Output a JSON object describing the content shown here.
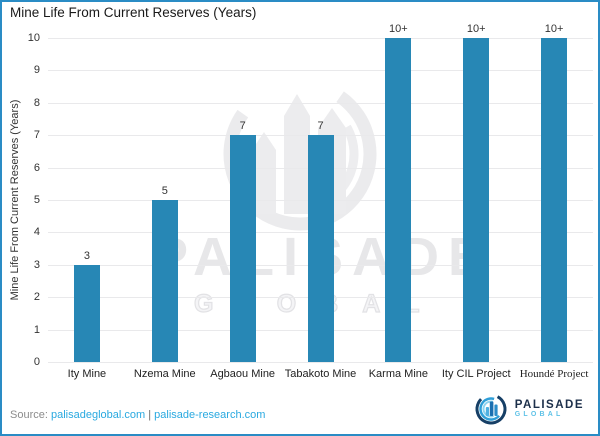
{
  "title": "Mine Life From Current Reserves (Years)",
  "chart_data": {
    "type": "bar",
    "categories": [
      "Ity Mine",
      "Nzema Mine",
      "Agbaou Mine",
      "Tabakoto Mine",
      "Karma Mine",
      "Ity CIL Project",
      "Houndé Project"
    ],
    "values": [
      3,
      5,
      7,
      7,
      10,
      10,
      10
    ],
    "value_labels": [
      "3",
      "5",
      "7",
      "7",
      "10+",
      "10+",
      "10+"
    ],
    "category_font_variant": [
      "sans",
      "sans",
      "sans",
      "sans",
      "sans",
      "sans",
      "serif"
    ],
    "title": "Mine Life From Current Reserves (Years)",
    "xlabel": "",
    "ylabel": "Mine Life From Current Reserves (Years)",
    "ylim": [
      0,
      10
    ],
    "yticks": [
      0,
      1,
      2,
      3,
      4,
      5,
      6,
      7,
      8,
      9,
      10
    ],
    "grid": true,
    "legend": "none",
    "bar_color": "#2787b5",
    "gridline_color": "#e9e9eb"
  },
  "watermark": {
    "wordmark": "PALISADE",
    "subword": "GLOBAL"
  },
  "footer": {
    "source_label": "Source:",
    "link1": "palisadeglobal.com",
    "separator": "|",
    "link2": "palisade-research.com",
    "brand_name": "PALISADE",
    "brand_sub": "GLOBAL"
  },
  "colors": {
    "frame_border": "#2a8cc5",
    "bar": "#2787b5",
    "link": "#29a9e0",
    "brand_navy": "#1c2f4a",
    "brand_lightblue": "#5fc2e7"
  }
}
